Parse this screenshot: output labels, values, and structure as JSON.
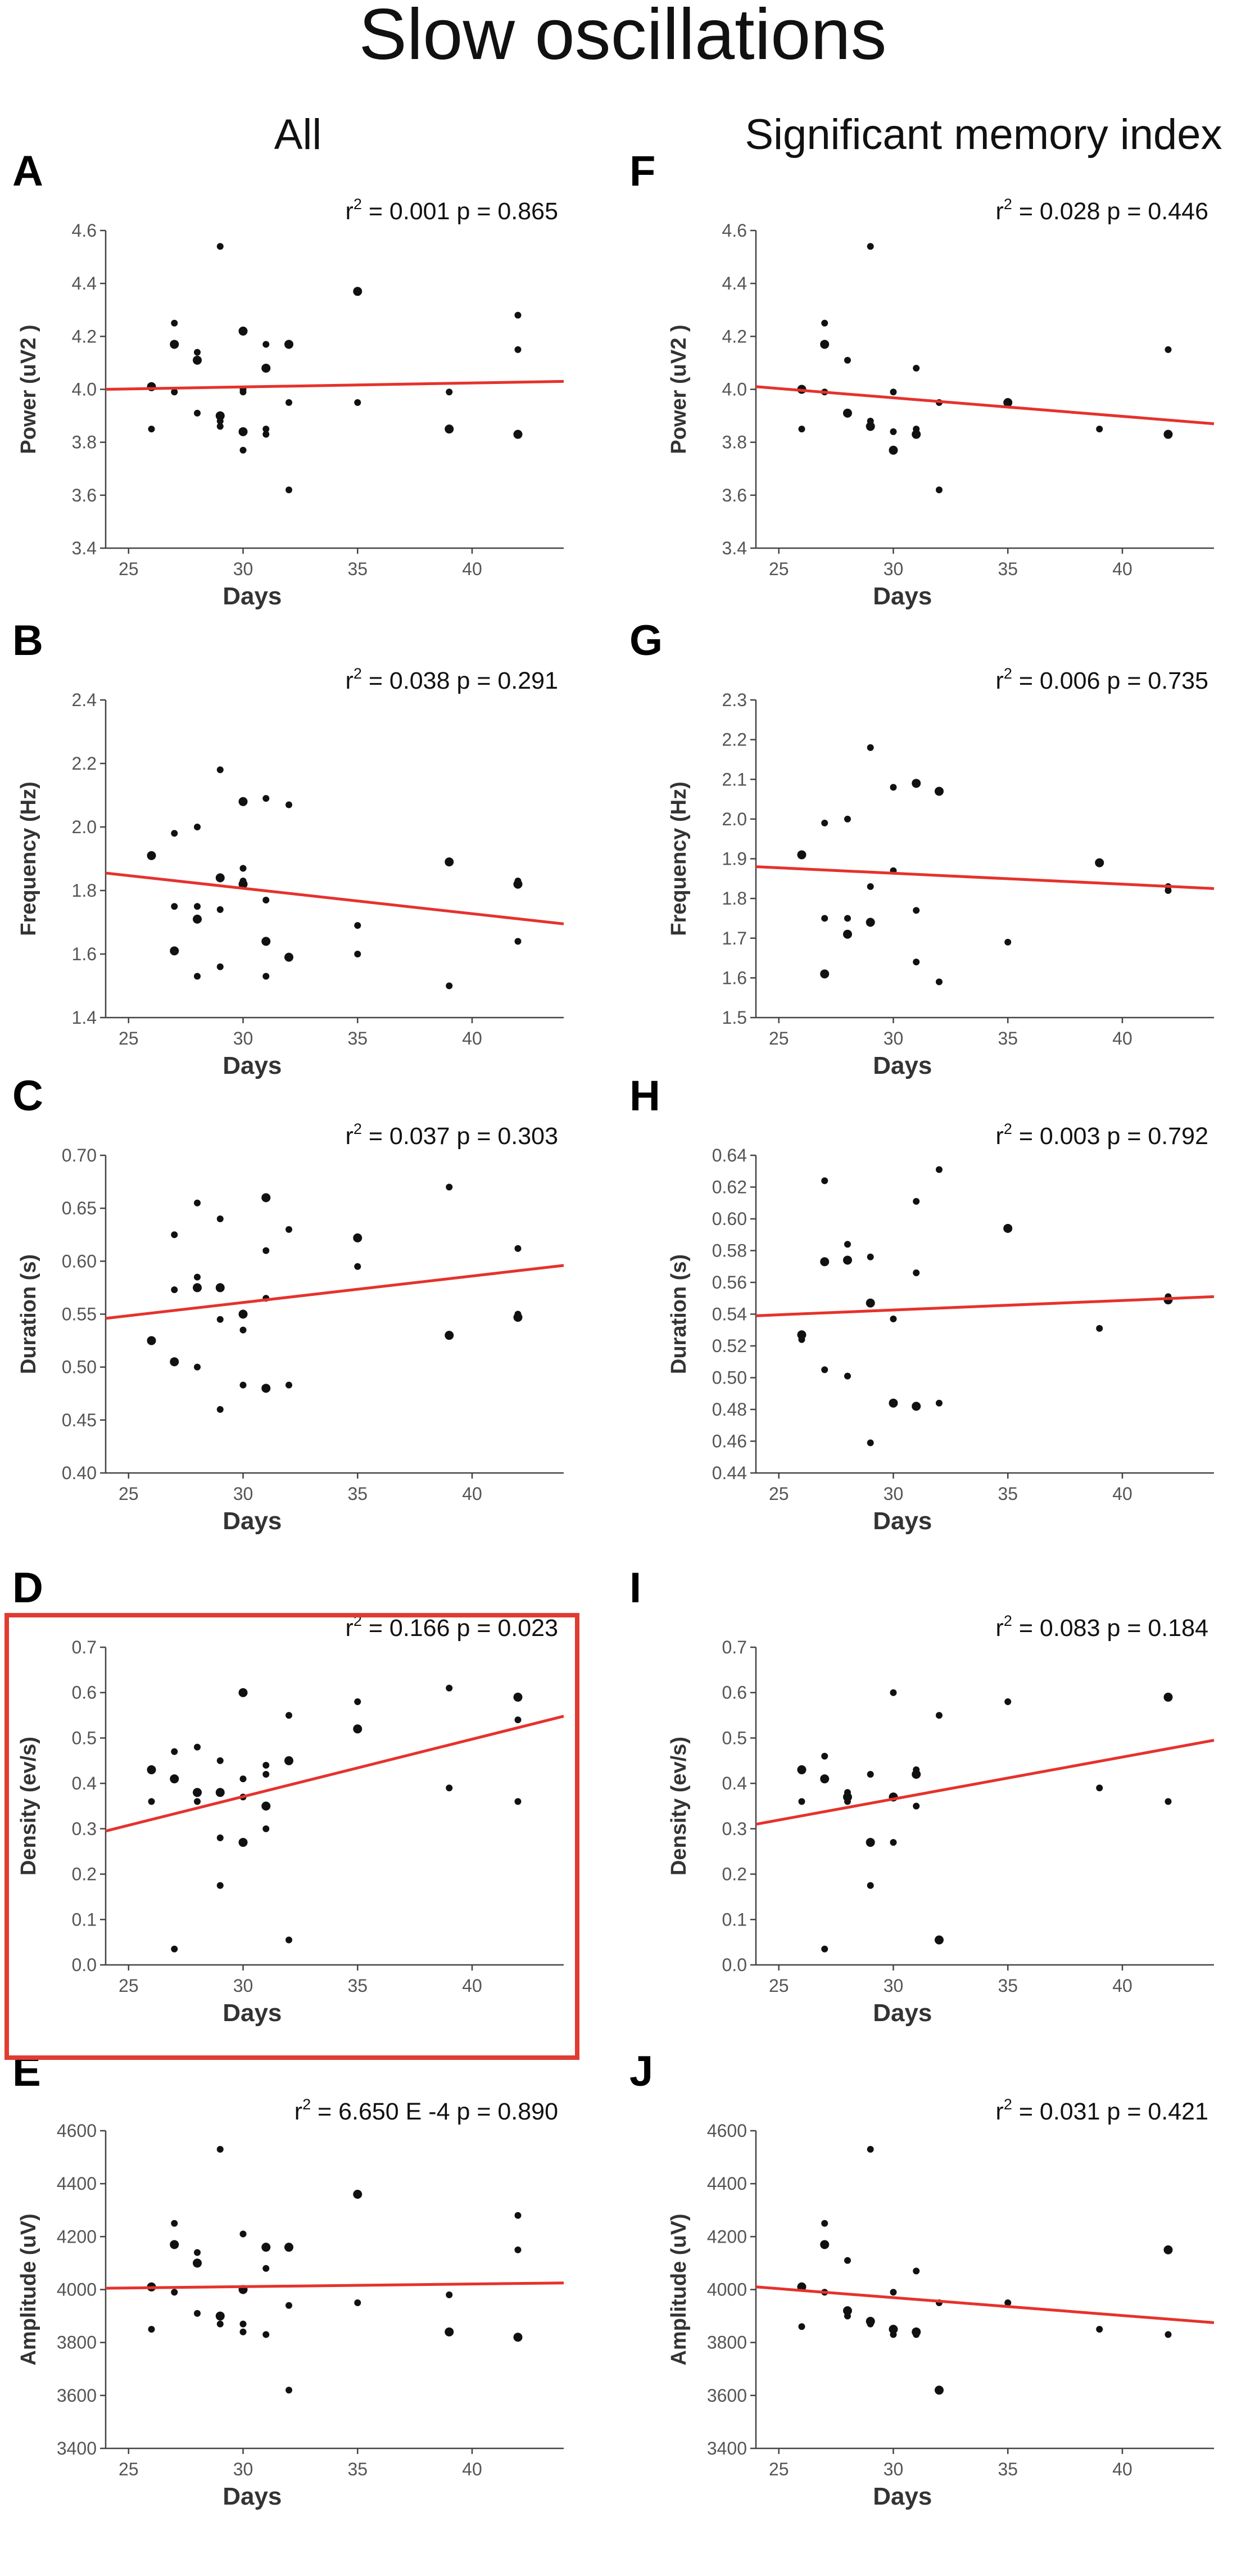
{
  "figure": {
    "title": "Slow oscillations",
    "columns": [
      "All",
      "Significant memory index"
    ],
    "highlighted_panel": "D"
  },
  "colors": {
    "points": "#111111",
    "fit_line": "#e5322d",
    "highlight_box": "#e03c31",
    "axis": "#444444"
  },
  "chart_data": [
    {
      "id": "A",
      "type": "scatter",
      "xlabel": "Days",
      "ylabel": "Power (uV2 )",
      "stat_text": "= 0.001 p = 0.865",
      "xlim": [
        24,
        44
      ],
      "xticks": [
        "25",
        "30",
        "35",
        "40"
      ],
      "ylim": [
        3.4,
        4.6
      ],
      "yticks": [
        "3.4",
        "3.6",
        "3.8",
        "4.0",
        "4.2",
        "4.4",
        "4.6"
      ],
      "fit": [
        [
          24,
          4.0
        ],
        [
          44,
          4.03
        ]
      ],
      "points": [
        [
          26,
          4.01
        ],
        [
          26,
          3.85
        ],
        [
          27,
          4.25
        ],
        [
          27,
          4.17
        ],
        [
          27,
          3.99
        ],
        [
          28,
          4.14
        ],
        [
          28,
          4.11
        ],
        [
          28,
          3.91
        ],
        [
          29,
          4.54
        ],
        [
          29,
          3.9
        ],
        [
          29,
          3.88
        ],
        [
          29,
          3.86
        ],
        [
          30,
          4.22
        ],
        [
          30,
          4.0
        ],
        [
          30,
          3.99
        ],
        [
          30,
          3.84
        ],
        [
          30,
          3.77
        ],
        [
          31,
          4.17
        ],
        [
          31,
          4.08
        ],
        [
          31,
          3.85
        ],
        [
          31,
          3.83
        ],
        [
          32,
          4.17
        ],
        [
          32,
          3.95
        ],
        [
          32,
          3.62
        ],
        [
          35,
          4.37
        ],
        [
          35,
          3.95
        ],
        [
          39,
          3.99
        ],
        [
          39,
          3.85
        ],
        [
          42,
          4.28
        ],
        [
          42,
          4.15
        ],
        [
          42,
          3.83
        ]
      ]
    },
    {
      "id": "B",
      "type": "scatter",
      "xlabel": "Days",
      "ylabel": "Frequency (Hz)",
      "stat_text": "= 0.038 p = 0.291",
      "xlim": [
        24,
        44
      ],
      "xticks": [
        "25",
        "30",
        "35",
        "40"
      ],
      "ylim": [
        1.4,
        2.4
      ],
      "yticks": [
        "1.4",
        "1.6",
        "1.8",
        "2.0",
        "2.2",
        "2.4"
      ],
      "fit": [
        [
          24,
          1.855
        ],
        [
          44,
          1.695
        ]
      ],
      "points": [
        [
          26,
          1.91
        ],
        [
          27,
          1.98
        ],
        [
          27,
          1.75
        ],
        [
          27,
          1.61
        ],
        [
          28,
          2.0
        ],
        [
          28,
          1.75
        ],
        [
          28,
          1.71
        ],
        [
          28,
          1.53
        ],
        [
          29,
          2.18
        ],
        [
          29,
          1.84
        ],
        [
          29,
          1.74
        ],
        [
          29,
          1.56
        ],
        [
          30,
          2.08
        ],
        [
          30,
          1.87
        ],
        [
          30,
          1.83
        ],
        [
          30,
          1.82
        ],
        [
          31,
          2.09
        ],
        [
          31,
          1.77
        ],
        [
          31,
          1.64
        ],
        [
          31,
          1.53
        ],
        [
          32,
          2.07
        ],
        [
          32,
          1.59
        ],
        [
          35,
          1.69
        ],
        [
          35,
          1.6
        ],
        [
          39,
          1.89
        ],
        [
          39,
          1.5
        ],
        [
          42,
          1.83
        ],
        [
          42,
          1.82
        ],
        [
          42,
          1.64
        ]
      ]
    },
    {
      "id": "C",
      "type": "scatter",
      "xlabel": "Days",
      "ylabel": "Duration (s)",
      "stat_text": "= 0.037 p = 0.303",
      "xlim": [
        24,
        44
      ],
      "xticks": [
        "25",
        "30",
        "35",
        "40"
      ],
      "ylim": [
        0.4,
        0.7
      ],
      "yticks": [
        "0.40",
        "0.45",
        "0.50",
        "0.55",
        "0.60",
        "0.65",
        "0.70"
      ],
      "fit": [
        [
          24,
          0.546
        ],
        [
          44,
          0.596
        ]
      ],
      "points": [
        [
          26,
          0.525
        ],
        [
          27,
          0.625
        ],
        [
          27,
          0.573
        ],
        [
          27,
          0.505
        ],
        [
          28,
          0.655
        ],
        [
          28,
          0.585
        ],
        [
          28,
          0.575
        ],
        [
          28,
          0.5
        ],
        [
          29,
          0.64
        ],
        [
          29,
          0.575
        ],
        [
          29,
          0.545
        ],
        [
          29,
          0.46
        ],
        [
          30,
          0.55
        ],
        [
          30,
          0.535
        ],
        [
          30,
          0.483
        ],
        [
          31,
          0.66
        ],
        [
          31,
          0.61
        ],
        [
          31,
          0.565
        ],
        [
          31,
          0.48
        ],
        [
          32,
          0.63
        ],
        [
          32,
          0.483
        ],
        [
          35,
          0.622
        ],
        [
          35,
          0.595
        ],
        [
          39,
          0.67
        ],
        [
          39,
          0.53
        ],
        [
          42,
          0.612
        ],
        [
          42,
          0.55
        ],
        [
          42,
          0.547
        ]
      ]
    },
    {
      "id": "D",
      "type": "scatter",
      "xlabel": "Days",
      "ylabel": "Density (ev/s)",
      "stat_text": "= 0.166 p = 0.023",
      "xlim": [
        24,
        44
      ],
      "xticks": [
        "25",
        "30",
        "35",
        "40"
      ],
      "ylim": [
        0.0,
        0.7
      ],
      "yticks": [
        "0.0",
        "0.1",
        "0.2",
        "0.3",
        "0.4",
        "0.5",
        "0.6",
        "0.7"
      ],
      "fit": [
        [
          24,
          0.295
        ],
        [
          44,
          0.548
        ]
      ],
      "points": [
        [
          26,
          0.43
        ],
        [
          26,
          0.36
        ],
        [
          27,
          0.47
        ],
        [
          27,
          0.41
        ],
        [
          27,
          0.035
        ],
        [
          28,
          0.48
        ],
        [
          28,
          0.38
        ],
        [
          28,
          0.36
        ],
        [
          29,
          0.45
        ],
        [
          29,
          0.38
        ],
        [
          29,
          0.28
        ],
        [
          29,
          0.175
        ],
        [
          30,
          0.6
        ],
        [
          30,
          0.41
        ],
        [
          30,
          0.37
        ],
        [
          30,
          0.27
        ],
        [
          31,
          0.44
        ],
        [
          31,
          0.42
        ],
        [
          31,
          0.35
        ],
        [
          31,
          0.3
        ],
        [
          32,
          0.55
        ],
        [
          32,
          0.45
        ],
        [
          32,
          0.055
        ],
        [
          35,
          0.58
        ],
        [
          35,
          0.52
        ],
        [
          39,
          0.61
        ],
        [
          39,
          0.39
        ],
        [
          42,
          0.59
        ],
        [
          42,
          0.54
        ],
        [
          42,
          0.36
        ]
      ]
    },
    {
      "id": "E",
      "type": "scatter",
      "xlabel": "Days",
      "ylabel": "Amplitude (uV)",
      "stat_text": "= 6.650 E -4 p = 0.890",
      "xlim": [
        24,
        44
      ],
      "xticks": [
        "25",
        "30",
        "35",
        "40"
      ],
      "ylim": [
        3400,
        4600
      ],
      "yticks": [
        "3400",
        "3600",
        "3800",
        "4000",
        "4200",
        "4400",
        "4600"
      ],
      "fit": [
        [
          24,
          4005
        ],
        [
          44,
          4025
        ]
      ],
      "points": [
        [
          26,
          4010
        ],
        [
          26,
          3850
        ],
        [
          27,
          4250
        ],
        [
          27,
          4170
        ],
        [
          27,
          3990
        ],
        [
          28,
          4140
        ],
        [
          28,
          4100
        ],
        [
          28,
          3910
        ],
        [
          29,
          4530
        ],
        [
          29,
          3900
        ],
        [
          29,
          3870
        ],
        [
          30,
          4210
        ],
        [
          30,
          4000
        ],
        [
          30,
          3870
        ],
        [
          30,
          3840
        ],
        [
          31,
          4160
        ],
        [
          31,
          4080
        ],
        [
          31,
          3830
        ],
        [
          32,
          4160
        ],
        [
          32,
          3940
        ],
        [
          32,
          3620
        ],
        [
          35,
          4360
        ],
        [
          35,
          3950
        ],
        [
          39,
          3980
        ],
        [
          39,
          3840
        ],
        [
          42,
          4280
        ],
        [
          42,
          4150
        ],
        [
          42,
          3820
        ]
      ]
    },
    {
      "id": "F",
      "type": "scatter",
      "xlabel": "Days",
      "ylabel": "Power (uV2 )",
      "stat_text": "= 0.028 p = 0.446",
      "xlim": [
        24,
        44
      ],
      "xticks": [
        "25",
        "30",
        "35",
        "40"
      ],
      "ylim": [
        3.4,
        4.6
      ],
      "yticks": [
        "3.4",
        "3.6",
        "3.8",
        "4.0",
        "4.2",
        "4.4",
        "4.6"
      ],
      "fit": [
        [
          24,
          4.01
        ],
        [
          44,
          3.87
        ]
      ],
      "points": [
        [
          26,
          4.0
        ],
        [
          26,
          3.85
        ],
        [
          27,
          4.25
        ],
        [
          27,
          4.17
        ],
        [
          27,
          3.99
        ],
        [
          28,
          4.11
        ],
        [
          28,
          3.91
        ],
        [
          29,
          4.54
        ],
        [
          29,
          3.88
        ],
        [
          29,
          3.86
        ],
        [
          30,
          3.99
        ],
        [
          30,
          3.84
        ],
        [
          30,
          3.77
        ],
        [
          31,
          4.08
        ],
        [
          31,
          3.85
        ],
        [
          31,
          3.83
        ],
        [
          32,
          3.95
        ],
        [
          32,
          3.62
        ],
        [
          35,
          3.95
        ],
        [
          39,
          3.85
        ],
        [
          42,
          4.15
        ],
        [
          42,
          3.83
        ]
      ]
    },
    {
      "id": "G",
      "type": "scatter",
      "xlabel": "Days",
      "ylabel": "Frequency (Hz)",
      "stat_text": "= 0.006 p = 0.735",
      "xlim": [
        24,
        44
      ],
      "xticks": [
        "25",
        "30",
        "35",
        "40"
      ],
      "ylim": [
        1.5,
        2.3
      ],
      "yticks": [
        "1.5",
        "1.6",
        "1.7",
        "1.8",
        "1.9",
        "2.0",
        "2.1",
        "2.2",
        "2.3"
      ],
      "fit": [
        [
          24,
          1.88
        ],
        [
          44,
          1.825
        ]
      ],
      "points": [
        [
          26,
          1.91
        ],
        [
          27,
          1.99
        ],
        [
          27,
          1.75
        ],
        [
          27,
          1.61
        ],
        [
          28,
          2.0
        ],
        [
          28,
          1.75
        ],
        [
          28,
          1.71
        ],
        [
          29,
          2.18
        ],
        [
          29,
          1.83
        ],
        [
          29,
          1.74
        ],
        [
          30,
          2.08
        ],
        [
          30,
          1.87
        ],
        [
          31,
          2.09
        ],
        [
          31,
          1.77
        ],
        [
          31,
          1.64
        ],
        [
          32,
          2.07
        ],
        [
          32,
          1.59
        ],
        [
          35,
          1.69
        ],
        [
          39,
          1.89
        ],
        [
          42,
          1.83
        ],
        [
          42,
          1.82
        ]
      ]
    },
    {
      "id": "H",
      "type": "scatter",
      "xlabel": "Days",
      "ylabel": "Duration (s)",
      "stat_text": "= 0.003 p = 0.792",
      "xlim": [
        24,
        44
      ],
      "xticks": [
        "25",
        "30",
        "35",
        "40"
      ],
      "ylim": [
        0.44,
        0.64
      ],
      "yticks": [
        "0.44",
        "0.46",
        "0.48",
        "0.50",
        "0.52",
        "0.54",
        "0.56",
        "0.58",
        "0.60",
        "0.62",
        "0.64"
      ],
      "fit": [
        [
          24,
          0.539
        ],
        [
          44,
          0.551
        ]
      ],
      "points": [
        [
          26,
          0.527
        ],
        [
          26,
          0.524
        ],
        [
          27,
          0.624
        ],
        [
          27,
          0.573
        ],
        [
          27,
          0.505
        ],
        [
          28,
          0.584
        ],
        [
          28,
          0.574
        ],
        [
          28,
          0.501
        ],
        [
          29,
          0.576
        ],
        [
          29,
          0.547
        ],
        [
          29,
          0.459
        ],
        [
          30,
          0.537
        ],
        [
          30,
          0.484
        ],
        [
          31,
          0.611
        ],
        [
          31,
          0.566
        ],
        [
          31,
          0.482
        ],
        [
          32,
          0.631
        ],
        [
          32,
          0.484
        ],
        [
          35,
          0.594
        ],
        [
          39,
          0.531
        ],
        [
          42,
          0.551
        ],
        [
          42,
          0.549
        ]
      ]
    },
    {
      "id": "I",
      "type": "scatter",
      "xlabel": "Days",
      "ylabel": "Density (ev/s)",
      "stat_text": "= 0.083 p = 0.184",
      "xlim": [
        24,
        44
      ],
      "xticks": [
        "25",
        "30",
        "35",
        "40"
      ],
      "ylim": [
        0.0,
        0.7
      ],
      "yticks": [
        "0.0",
        "0.1",
        "0.2",
        "0.3",
        "0.4",
        "0.5",
        "0.6",
        "0.7"
      ],
      "fit": [
        [
          24,
          0.31
        ],
        [
          44,
          0.495
        ]
      ],
      "points": [
        [
          26,
          0.43
        ],
        [
          26,
          0.36
        ],
        [
          27,
          0.46
        ],
        [
          27,
          0.41
        ],
        [
          27,
          0.035
        ],
        [
          28,
          0.38
        ],
        [
          28,
          0.37
        ],
        [
          28,
          0.36
        ],
        [
          29,
          0.42
        ],
        [
          29,
          0.27
        ],
        [
          29,
          0.175
        ],
        [
          30,
          0.6
        ],
        [
          30,
          0.37
        ],
        [
          30,
          0.27
        ],
        [
          31,
          0.43
        ],
        [
          31,
          0.42
        ],
        [
          31,
          0.35
        ],
        [
          32,
          0.55
        ],
        [
          32,
          0.055
        ],
        [
          35,
          0.58
        ],
        [
          39,
          0.39
        ],
        [
          42,
          0.59
        ],
        [
          42,
          0.36
        ]
      ]
    },
    {
      "id": "J",
      "type": "scatter",
      "xlabel": "Days",
      "ylabel": "Amplitude (uV)",
      "stat_text": "= 0.031 p = 0.421",
      "xlim": [
        24,
        44
      ],
      "xticks": [
        "25",
        "30",
        "35",
        "40"
      ],
      "ylim": [
        3400,
        4600
      ],
      "yticks": [
        "3400",
        "3600",
        "3800",
        "4000",
        "4200",
        "4400",
        "4600"
      ],
      "fit": [
        [
          24,
          4010
        ],
        [
          44,
          3875
        ]
      ],
      "points": [
        [
          26,
          4010
        ],
        [
          26,
          3860
        ],
        [
          27,
          4250
        ],
        [
          27,
          4170
        ],
        [
          27,
          3990
        ],
        [
          28,
          4110
        ],
        [
          28,
          3920
        ],
        [
          28,
          3900
        ],
        [
          29,
          4530
        ],
        [
          29,
          3880
        ],
        [
          29,
          3870
        ],
        [
          30,
          3990
        ],
        [
          30,
          3850
        ],
        [
          30,
          3830
        ],
        [
          31,
          4070
        ],
        [
          31,
          3840
        ],
        [
          31,
          3830
        ],
        [
          32,
          3950
        ],
        [
          32,
          3620
        ],
        [
          35,
          3950
        ],
        [
          39,
          3850
        ],
        [
          42,
          4150
        ],
        [
          42,
          3830
        ]
      ]
    }
  ]
}
